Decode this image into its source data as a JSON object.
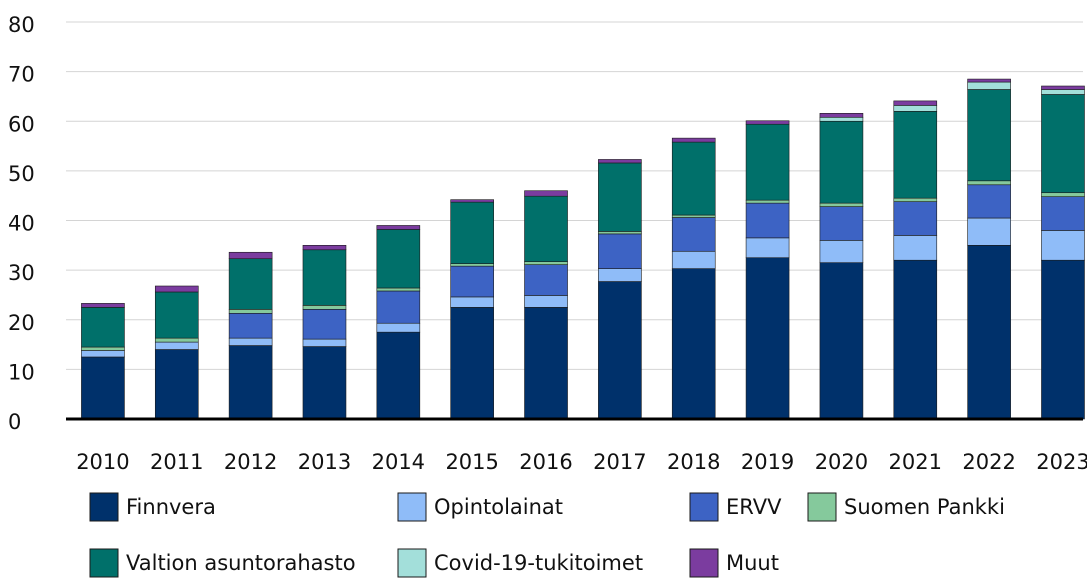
{
  "chart_data": {
    "type": "bar",
    "stacked": true,
    "categories": [
      "2010",
      "2011",
      "2012",
      "2013",
      "2014",
      "2015",
      "2016",
      "2017",
      "2018",
      "2019",
      "2020",
      "2021",
      "2022",
      "2023"
    ],
    "series": [
      {
        "name": "Finnvera",
        "color": "#00316b",
        "values": [
          12.5,
          14,
          14.8,
          14.6,
          17.5,
          22.5,
          22.5,
          27.7,
          30.3,
          32.5,
          31.5,
          32,
          35,
          32
        ]
      },
      {
        "name": "Opintolainat",
        "color": "#8fbcf8",
        "values": [
          1.3,
          1.5,
          1.5,
          1.5,
          1.8,
          2.1,
          2.4,
          2.6,
          3.5,
          4,
          4.5,
          5,
          5.5,
          6
        ]
      },
      {
        "name": "ERVV",
        "color": "#3d63c4",
        "values": [
          0,
          0,
          5,
          6,
          6.5,
          6.2,
          6.2,
          7,
          6.8,
          7,
          6.8,
          6.8,
          6.7,
          6.8
        ]
      },
      {
        "name": "Suomen Pankki",
        "color": "#85c99c",
        "values": [
          0.7,
          0.8,
          0.8,
          0.8,
          0.6,
          0.5,
          0.6,
          0.5,
          0.5,
          0.6,
          0.7,
          0.7,
          0.8,
          0.8
        ]
      },
      {
        "name": "Valtion asuntorahasto",
        "color": "#00706a",
        "values": [
          8,
          9.3,
          10.2,
          11.2,
          11.8,
          12.4,
          13.2,
          13.8,
          14.7,
          15.3,
          16.5,
          17.5,
          18.4,
          19.8
        ]
      },
      {
        "name": "Covid-19-tukitoimet",
        "color": "#a3dfda",
        "values": [
          0,
          0,
          0,
          0,
          0,
          0,
          0,
          0,
          0,
          0,
          0.8,
          1.2,
          1.5,
          1
        ]
      },
      {
        "name": "Muut",
        "color": "#7b3c9f",
        "values": [
          0.8,
          1.2,
          1.3,
          0.9,
          0.8,
          0.5,
          1.1,
          0.7,
          0.8,
          0.7,
          0.8,
          0.9,
          0.6,
          0.7
        ]
      }
    ],
    "ylim": [
      0,
      80
    ],
    "yticks": [
      0,
      10,
      20,
      30,
      40,
      50,
      60,
      70,
      80
    ],
    "grid": true
  }
}
